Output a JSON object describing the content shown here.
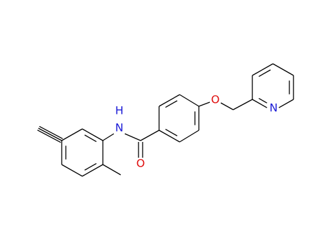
{
  "atoms": [
    "H",
    "N",
    "O",
    "O",
    "N"
  ]
}
